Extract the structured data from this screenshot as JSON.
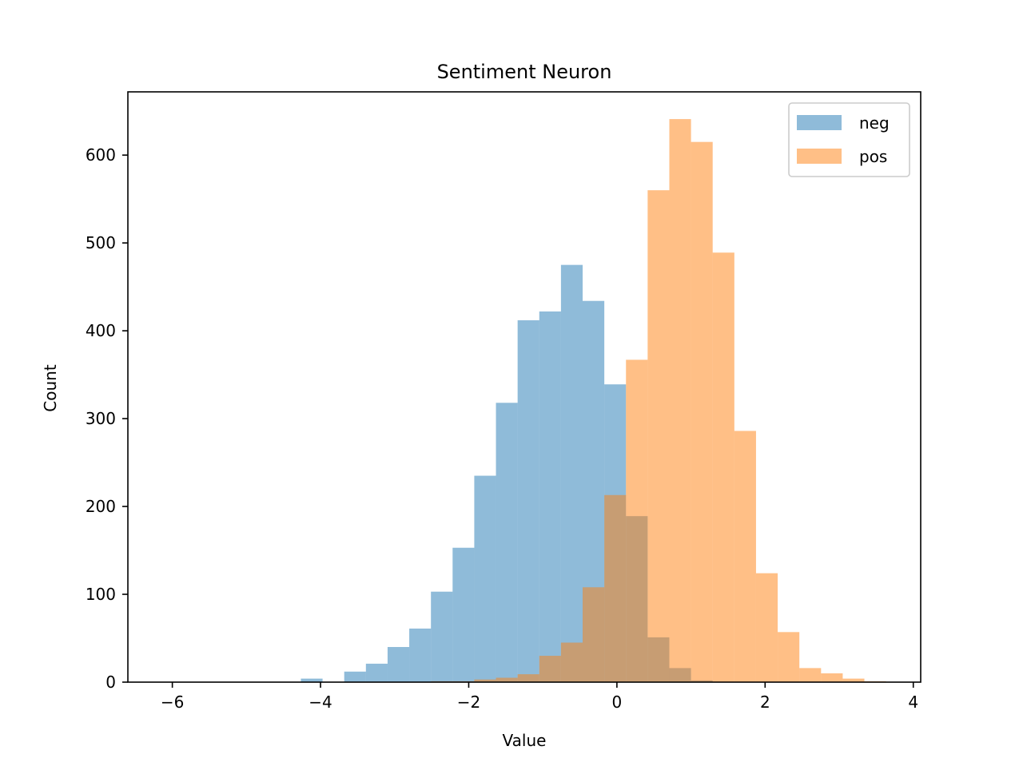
{
  "chart_data": {
    "type": "bar",
    "title": "Sentiment Neuron",
    "xlabel": "Value",
    "ylabel": "Count",
    "xlim": [
      -6.6,
      4.1
    ],
    "ylim": [
      0,
      672
    ],
    "xticks": [
      -6,
      -4,
      -2,
      0,
      2,
      4
    ],
    "xtick_labels": [
      "−6",
      "−4",
      "−2",
      "0",
      "2",
      "4"
    ],
    "yticks": [
      0,
      100,
      200,
      300,
      400,
      500,
      600
    ],
    "ytick_labels": [
      "0",
      "100",
      "200",
      "300",
      "400",
      "500",
      "600"
    ],
    "grid": false,
    "legend_position": "top-right",
    "series": [
      {
        "name": "neg",
        "color": "#1f77b4",
        "opacity": 0.5,
        "bin_start": -6.02,
        "bin_width": 0.2925,
        "counts": [
          0,
          0,
          0,
          0,
          0,
          0,
          4,
          0,
          12,
          21,
          40,
          61,
          103,
          153,
          235,
          318,
          412,
          422,
          475,
          434,
          339,
          189,
          51,
          16,
          2,
          0,
          0,
          0,
          0,
          0,
          0,
          0,
          0
        ]
      },
      {
        "name": "pos",
        "color": "#ff7f0e",
        "opacity": 0.5,
        "bin_start": -6.02,
        "bin_width": 0.2925,
        "counts": [
          0,
          0,
          0,
          0,
          0,
          0,
          0,
          0,
          0,
          0,
          0,
          0,
          1,
          1,
          3,
          5,
          9,
          30,
          45,
          108,
          213,
          367,
          560,
          641,
          615,
          489,
          286,
          124,
          57,
          16,
          10,
          4,
          1
        ]
      }
    ]
  }
}
